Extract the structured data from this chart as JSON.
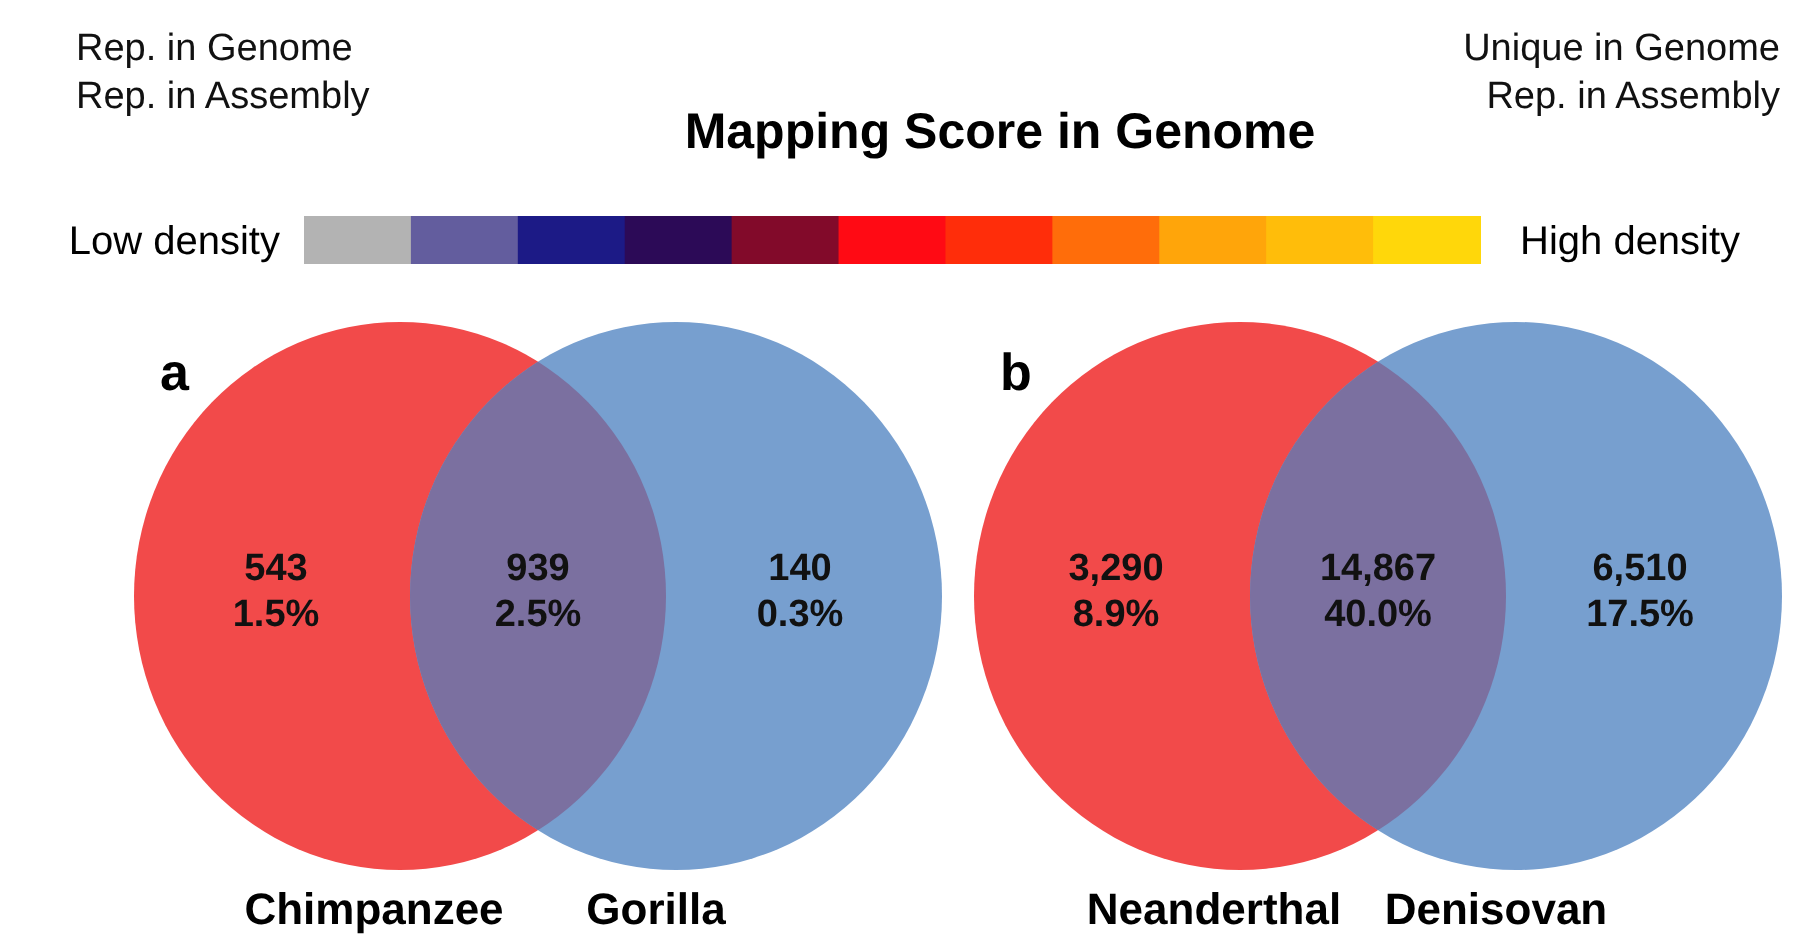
{
  "chart_data": [
    {
      "type": "other",
      "title": "Mapping Score in Genome",
      "annotations": [
        "Rep. in  Genome\nRep. in Assembly",
        "Unique in  Genome\nRep. in Assembly",
        "Low density",
        "High density"
      ],
      "colors": [
        "#b3b3b3",
        "#635d9e",
        "#1c1a86",
        "#2c0a57",
        "#820a2a",
        "#ff0a14",
        "#ff2d0a",
        "#ff6d0a",
        "#ffa50a",
        "#ffbd0a",
        "#ffd70a"
      ]
    },
    {
      "type": "other",
      "title": "a",
      "annotations": [
        "Chimpanzee",
        "Gorilla"
      ],
      "categories": [
        null,
        null,
        null
      ],
      "colors": [
        "#f24a4a",
        "#7b70a0",
        "#779fcf"
      ],
      "values": [
        543,
        939,
        140
      ],
      "value_labels": [
        "543\n1.5%",
        "939\n2.5%",
        "140\n0.3%"
      ]
    },
    {
      "type": "other",
      "title": "b",
      "annotations": [
        "Neanderthal",
        "Denisovan"
      ],
      "categories": [
        null,
        null,
        null
      ],
      "colors": [
        "#f24a4a",
        "#7b70a0",
        "#779fcf"
      ],
      "values": [
        3290,
        14867,
        6510
      ],
      "value_labels": [
        "3,290\n8.9%",
        "14,867\n40.0%",
        "6,510\n17.5%"
      ]
    }
  ]
}
